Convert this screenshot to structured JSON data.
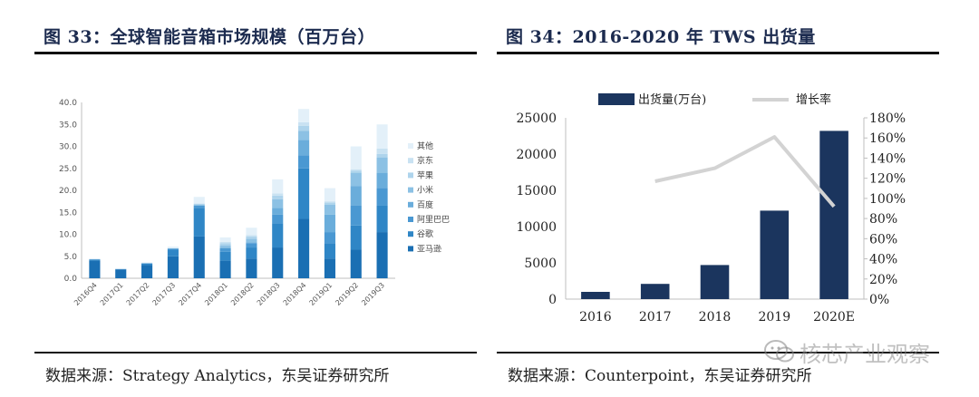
{
  "left": {
    "title": "图 33：全球智能音箱市场规模（百万台）",
    "source": "数据来源：Strategy Analytics，东吴证券研究所"
  },
  "right": {
    "title": "图 34：2016-2020 年 TWS 出货量",
    "source": "数据来源：Counterpoint，东吴证券研究所"
  },
  "watermark": "核芯产业观察",
  "chart_data": [
    {
      "type": "bar",
      "stacked": true,
      "categories": [
        "2016Q4",
        "2017Q1",
        "2017Q2",
        "2017Q3",
        "2017Q4",
        "2018Q1",
        "2018Q2",
        "2018Q3",
        "2018Q4",
        "2019Q1",
        "2019Q2",
        "2019Q3"
      ],
      "ylim": [
        0,
        40
      ],
      "yticks": [
        "0.0",
        "5.0",
        "10.0",
        "15.0",
        "20.0",
        "25.0",
        "30.0",
        "35.0",
        "40.0"
      ],
      "legend_position": "right",
      "series": [
        {
          "name": "亚马逊",
          "color": "#1a6fb3",
          "values": [
            4.0,
            2.0,
            3.0,
            5.0,
            9.5,
            4.0,
            4.5,
            7.0,
            13.5,
            4.5,
            6.5,
            10.5
          ]
        },
        {
          "name": "谷歌",
          "color": "#2f86c6",
          "values": [
            0.3,
            0.1,
            0.3,
            1.5,
            6.5,
            2.0,
            2.5,
            5.5,
            11.5,
            3.5,
            5.5,
            6.0
          ]
        },
        {
          "name": "阿里巴巴",
          "color": "#4a98d2",
          "values": [
            0.0,
            0.0,
            0.1,
            0.2,
            0.5,
            0.8,
            1.0,
            2.0,
            3.0,
            2.5,
            4.5,
            4.0
          ]
        },
        {
          "name": "百度",
          "color": "#6aaddb",
          "values": [
            0.0,
            0.0,
            0.0,
            0.0,
            0.0,
            0.1,
            0.2,
            1.5,
            3.5,
            4.0,
            4.5,
            3.5
          ]
        },
        {
          "name": "小米",
          "color": "#8cc1e4",
          "values": [
            0.0,
            0.0,
            0.0,
            0.1,
            0.3,
            0.6,
            0.8,
            2.0,
            2.0,
            2.2,
            3.0,
            3.5
          ]
        },
        {
          "name": "苹果",
          "color": "#aed4ec",
          "values": [
            0.0,
            0.0,
            0.0,
            0.0,
            0.0,
            0.5,
            0.5,
            0.8,
            1.2,
            0.5,
            0.5,
            0.8
          ]
        },
        {
          "name": "京东",
          "color": "#c9e2f2",
          "values": [
            0.0,
            0.0,
            0.0,
            0.0,
            0.2,
            0.3,
            0.3,
            0.5,
            0.8,
            0.3,
            0.3,
            1.2
          ]
        },
        {
          "name": "其他",
          "color": "#e3f0f9",
          "values": [
            0.2,
            0.2,
            0.2,
            0.4,
            1.5,
            1.0,
            1.7,
            3.2,
            3.0,
            3.0,
            5.2,
            5.5
          ]
        }
      ]
    },
    {
      "type": "bar+line",
      "categories": [
        "2016",
        "2017",
        "2018",
        "2019",
        "2020E"
      ],
      "legend_position": "top",
      "series": [
        {
          "name": "出货量(万台)",
          "type": "bar",
          "axis": "left",
          "color": "#1b355e",
          "values": [
            1000,
            2100,
            4700,
            12200,
            23200
          ]
        },
        {
          "name": "增长率",
          "type": "line",
          "axis": "right",
          "color": "#d3d3d3",
          "values": [
            null,
            1.17,
            1.3,
            1.61,
            0.92
          ]
        }
      ],
      "ylim_left": [
        0,
        25000
      ],
      "ylim_right": [
        0,
        1.8
      ],
      "yticks_left": [
        "0",
        "5000",
        "10000",
        "15000",
        "20000",
        "25000"
      ],
      "yticks_right": [
        "0%",
        "20%",
        "40%",
        "60%",
        "80%",
        "100%",
        "120%",
        "140%",
        "160%",
        "180%"
      ]
    }
  ]
}
